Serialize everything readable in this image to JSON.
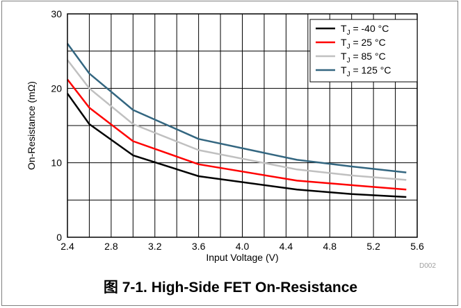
{
  "chart_data": {
    "type": "line",
    "title": "",
    "xlabel": "Input Voltage (V)",
    "ylabel": "On-Resistance (mΩ)",
    "xlim": [
      2.4,
      5.6
    ],
    "ylim": [
      0,
      30
    ],
    "x_ticks": [
      "2.4",
      "2.8",
      "3.2",
      "3.6",
      "4.0",
      "4.4",
      "4.8",
      "5.2",
      "5.6"
    ],
    "y_ticks": [
      "0",
      "10",
      "20",
      "30"
    ],
    "grid": true,
    "legend_position": "top-right",
    "x": [
      2.4,
      2.6,
      3.0,
      3.6,
      4.5,
      5.0,
      5.5
    ],
    "series": [
      {
        "name_main": "T",
        "name_sub": "J",
        "name_rest": " = -40 °C",
        "color": "#000000",
        "values": [
          19.3,
          15.2,
          11.0,
          8.2,
          6.4,
          5.8,
          5.4
        ]
      },
      {
        "name_main": "T",
        "name_sub": "J",
        "name_rest": " = 25 °C",
        "color": "#ff0000",
        "values": [
          21.2,
          17.4,
          12.9,
          9.8,
          7.6,
          7.0,
          6.4
        ]
      },
      {
        "name_main": "T",
        "name_sub": "J",
        "name_rest": " = 85 °C",
        "color": "#c0c0c0",
        "values": [
          23.8,
          20.0,
          15.2,
          11.7,
          9.1,
          8.3,
          7.7
        ]
      },
      {
        "name_main": "T",
        "name_sub": "J",
        "name_rest": " = 125 °C",
        "color": "#336680",
        "values": [
          26.0,
          22.0,
          17.1,
          13.2,
          10.4,
          9.5,
          8.7
        ]
      }
    ]
  },
  "figure_code": "D002",
  "caption": "图 7-1. High-Side FET On-Resistance"
}
